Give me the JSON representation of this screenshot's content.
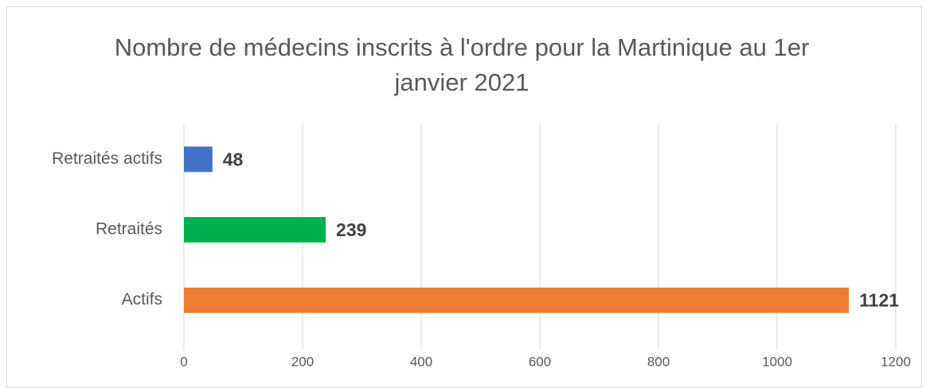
{
  "chart_data": {
    "type": "hbar",
    "title": "Nombre de médecins inscrits à l'ordre pour la Martinique au 1er janvier 2021",
    "categories": [
      "Retraités actifs",
      "Retraités",
      "Actifs"
    ],
    "values": [
      48,
      239,
      1121
    ],
    "colors": [
      "#4472c4",
      "#00b050",
      "#ed7d31"
    ],
    "xlim": [
      0,
      1200
    ],
    "xticks": [
      0,
      200,
      400,
      600,
      800,
      1000,
      1200
    ],
    "grid": true,
    "data_labels": true
  }
}
